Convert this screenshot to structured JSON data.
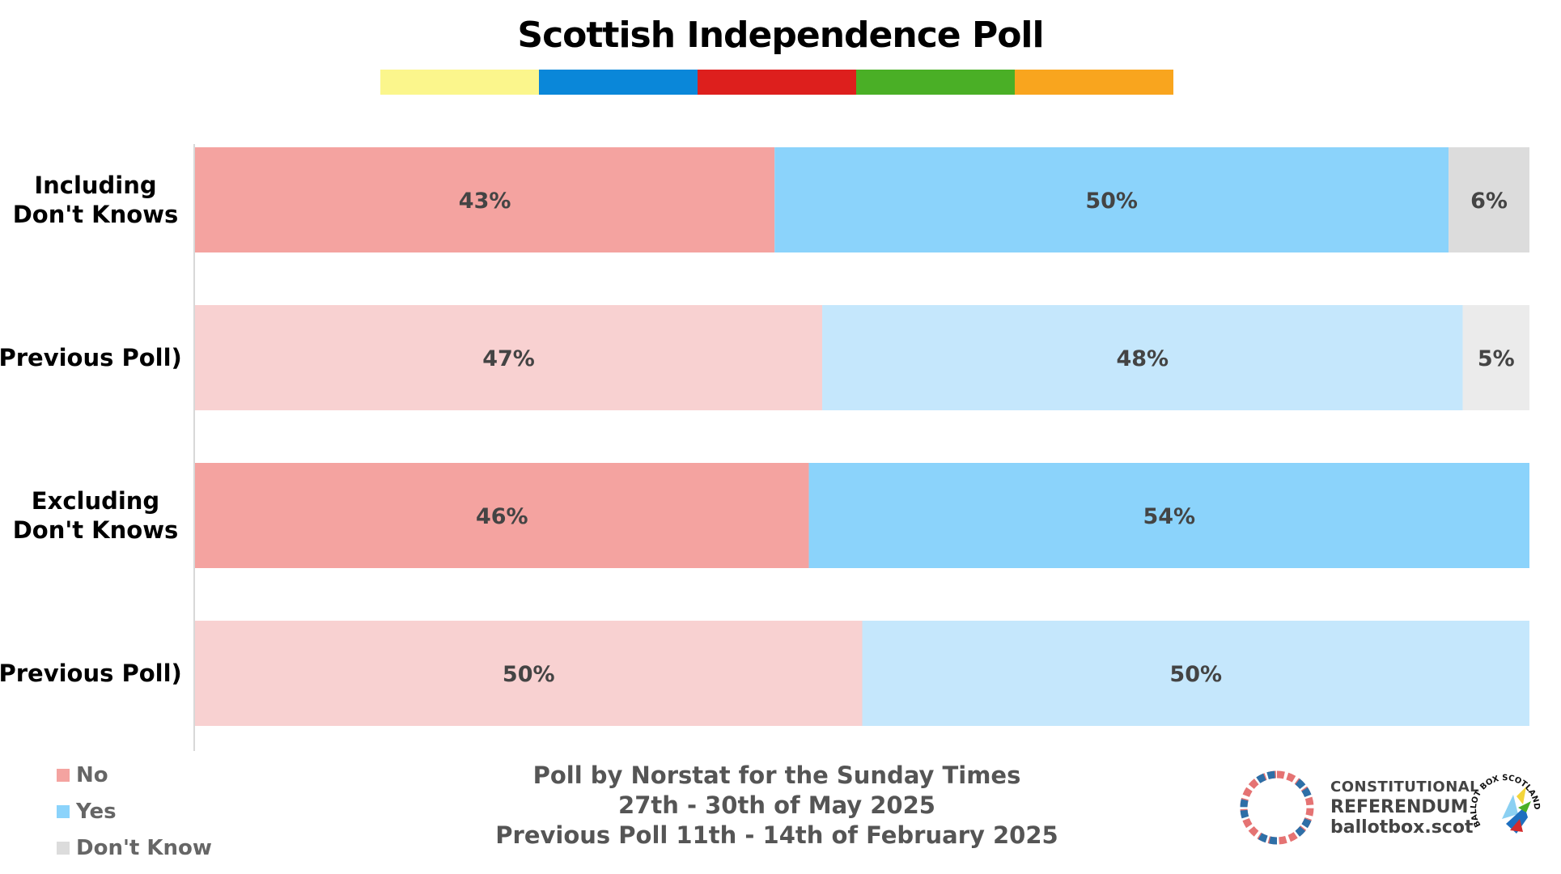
{
  "title": "Scottish Independence Poll",
  "stripe_colors": [
    "#fbf68c",
    "#0a87d9",
    "#dd1f1d",
    "#4aaf26",
    "#f9a51e"
  ],
  "chart_data": {
    "type": "bar",
    "orientation": "horizontal",
    "stacked": true,
    "normalized": true,
    "categories": [
      "Including Don't Knows",
      "(Previous Poll)",
      "Excluding Don't Knows",
      "(Previous Poll)"
    ],
    "series": [
      {
        "name": "No",
        "values": [
          43,
          47,
          46,
          50
        ],
        "labels": [
          "43%",
          "47%",
          "46%",
          "50%"
        ],
        "colors": [
          "#f4a3a0",
          "#f8d1d1",
          "#f4a3a0",
          "#f8d1d1"
        ]
      },
      {
        "name": "Yes",
        "values": [
          50,
          48,
          54,
          50
        ],
        "labels": [
          "50%",
          "48%",
          "54%",
          "50%"
        ],
        "colors": [
          "#8bd3fb",
          "#c5e7fc",
          "#8bd3fb",
          "#c5e7fc"
        ]
      },
      {
        "name": "Don't Know",
        "values": [
          6,
          5,
          0,
          0
        ],
        "labels": [
          "6%",
          "5%",
          "",
          ""
        ],
        "colors": [
          "#dcdcdc",
          "#ebebeb",
          "#dcdcdc",
          "#ebebeb"
        ]
      }
    ],
    "category_label_lines": [
      [
        "Including",
        "Don't Knows"
      ],
      [
        "(Previous Poll)"
      ],
      [
        "Excluding",
        "Don't Knows"
      ],
      [
        "(Previous Poll)"
      ]
    ],
    "legend": [
      {
        "label": "No",
        "color": "#f4a3a0"
      },
      {
        "label": "Yes",
        "color": "#8bd3fb"
      },
      {
        "label": "Don't Know",
        "color": "#dcdcdc"
      }
    ],
    "legend_position": "bottom-left",
    "grid": false
  },
  "credits": {
    "line1": "Poll by Norstat for the Sunday Times",
    "line2": "27th - 30th of May 2025",
    "line3": "Previous Poll 11th - 14th of February 2025"
  },
  "brand": {
    "line1": "CONSTITUTIONAL",
    "line2": "REFERENDUM",
    "line3": "ballotbox.scot",
    "badge_text": "BALLOT BOX SCOTLAND"
  }
}
